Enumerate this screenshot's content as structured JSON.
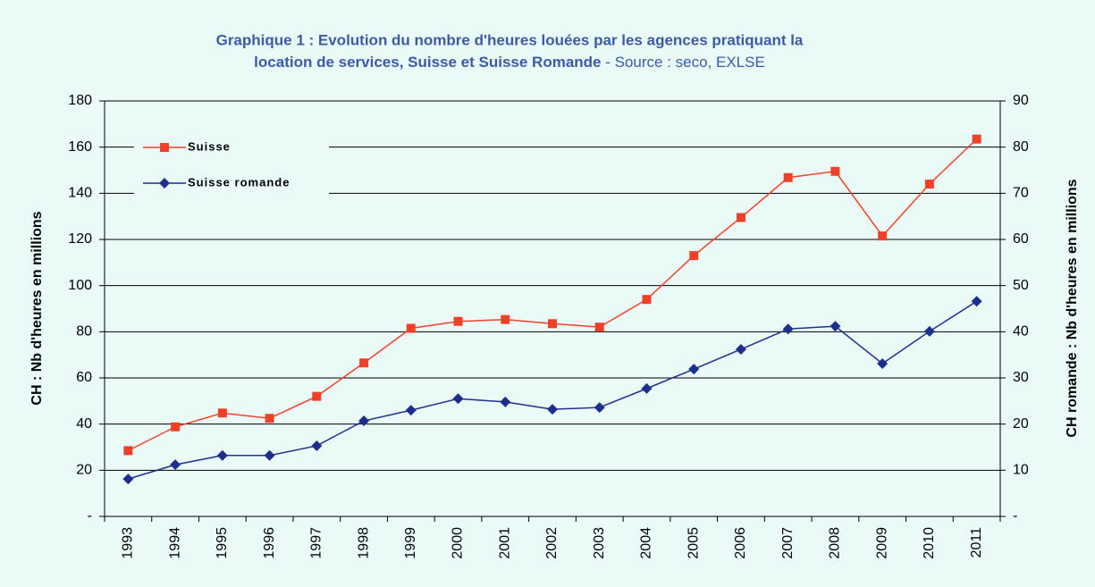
{
  "chart_data": {
    "type": "line",
    "title": [
      "Graphique 1 : Evolution du nombre d'heures louées par les agences pratiquant la",
      "location de services, Suisse et Suisse Romande"
    ],
    "source": " - Source : seco, EXLSE",
    "y_label": "CH : Nb d'heures en millions",
    "y2_label": "CH romande : Nb d'heures en millions",
    "categories": [
      "1993",
      "1994",
      "1995",
      "1996",
      "1997",
      "1998",
      "1999",
      "2000",
      "2001",
      "2002",
      "2003",
      "2004",
      "2005",
      "2006",
      "2007",
      "2008",
      "2009",
      "2010",
      "2011"
    ],
    "series": [
      {
        "name": "Suisse",
        "color": "#f0402a",
        "marker": "square",
        "values": [
          28.5,
          38.8,
          44.8,
          42.5,
          52,
          66.5,
          81.5,
          84.5,
          85.3,
          83.5,
          82,
          94,
          113,
          129.5,
          146.8,
          149.5,
          121.5,
          144,
          163.5
        ]
      },
      {
        "name": "Suisse romande",
        "color": "#1c2f8c",
        "marker": "diamond",
        "axis": "y2",
        "values": [
          8.1,
          11.2,
          13.2,
          13.2,
          15.3,
          20.7,
          23.0,
          25.5,
          24.8,
          23.2,
          23.6,
          27.7,
          31.9,
          36.2,
          40.6,
          41.2,
          33.1,
          40.1,
          46.6
        ]
      }
    ],
    "ylim": [
      0,
      180
    ],
    "yticks": [
      {
        "value": 0,
        "label": "-"
      },
      20,
      40,
      60,
      80,
      100,
      120,
      140,
      160,
      180
    ],
    "y2lim": [
      0,
      90
    ],
    "y2ticks": [
      {
        "value": 0,
        "label": "-"
      },
      10,
      20,
      30,
      40,
      50,
      60,
      70,
      80,
      90
    ],
    "grid": true,
    "legend": "upper left"
  }
}
